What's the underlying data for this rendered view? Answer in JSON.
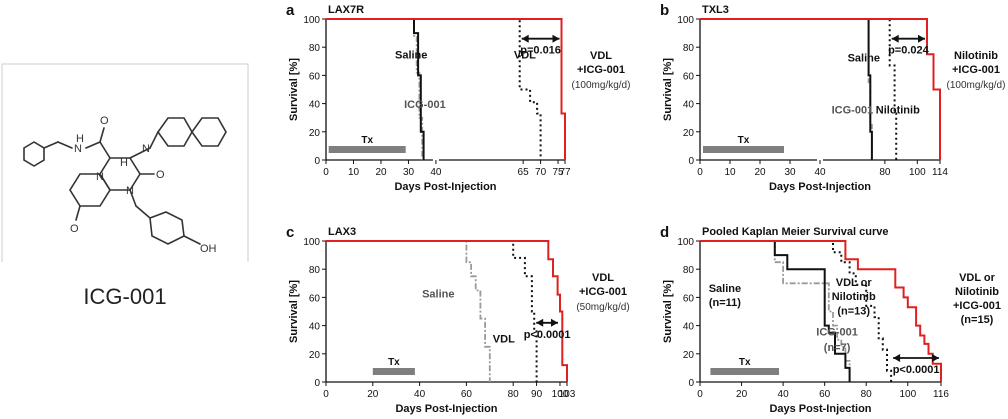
{
  "colors": {
    "combo": "#e02020",
    "saline": "#111111",
    "icg": "#9a9a9a",
    "standard": "#111111",
    "tx_bar": "#7f7f7f",
    "arrow": "#111111"
  },
  "molecule": {
    "label": "ICG-001",
    "atoms": [
      "N",
      "H",
      "O",
      "N",
      "H",
      "N",
      "O",
      "N",
      "O",
      "OH"
    ],
    "icon": "chemical-structure-icon"
  },
  "chart_data": [
    {
      "type": "line",
      "panel_letter": "a",
      "title": "LAX7R",
      "xlabel": "Days Post-Injection",
      "ylabel": "Survival [%]",
      "xlim": [
        0,
        77
      ],
      "ylim": [
        0,
        100
      ],
      "axis_break": true,
      "xticks": [
        "0",
        "10",
        "20",
        "30",
        "40",
        "65",
        "70",
        "75",
        "77"
      ],
      "yticks": [
        "0",
        "20",
        "40",
        "60",
        "80",
        "100"
      ],
      "treatment": {
        "label": "Tx",
        "x": [
          1,
          29
        ]
      },
      "series": [
        {
          "name": "Saline",
          "style": "saline",
          "x": [
            0,
            32,
            32,
            33.5,
            33.5,
            34.5,
            34.5,
            35.5,
            35.5
          ],
          "y": [
            100,
            100,
            90,
            90,
            60,
            60,
            20,
            20,
            0
          ]
        },
        {
          "name": "ICG-001",
          "style": "icg",
          "x": [
            0,
            32,
            32,
            33,
            33,
            34,
            34,
            35,
            35
          ],
          "y": [
            100,
            100,
            88,
            88,
            62,
            62,
            30,
            30,
            0
          ]
        },
        {
          "name": "VDL",
          "style": "standard",
          "x": [
            0,
            64,
            64,
            67,
            67,
            69,
            69,
            70,
            70
          ],
          "y": [
            100,
            100,
            50,
            50,
            41,
            41,
            33,
            33,
            0
          ]
        },
        {
          "name": "",
          "style": "combo",
          "x": [
            0,
            76,
            76,
            77,
            77
          ],
          "y": [
            100,
            100,
            33,
            33,
            0
          ]
        }
      ],
      "series_labels": [
        {
          "text": "Saline",
          "x": 31,
          "y": 72,
          "style": "saline"
        },
        {
          "text": "ICG-001",
          "x": 36,
          "y": 37,
          "style": "icg"
        },
        {
          "text": "VDL",
          "x": 65.5,
          "y": 72,
          "style": "standard"
        }
      ],
      "combo_label": [
        "VDL",
        "+ICG-001"
      ],
      "dose_label": "(100mg/kg/d)",
      "pvalue": {
        "text": "p=0.016",
        "x": [
          64,
          76
        ],
        "y": 86
      }
    },
    {
      "type": "line",
      "panel_letter": "b",
      "title": "TXL3",
      "xlabel": "Days Post-Injection",
      "ylabel": "Survival [%]",
      "xlim": [
        0,
        114
      ],
      "ylim": [
        0,
        100
      ],
      "axis_break": true,
      "xticks": [
        "0",
        "10",
        "20",
        "30",
        "40",
        "80",
        "100",
        "114"
      ],
      "yticks": [
        "0",
        "20",
        "40",
        "60",
        "80",
        "100"
      ],
      "treatment": {
        "label": "Tx",
        "x": [
          1,
          28
        ]
      },
      "series": [
        {
          "name": "Saline",
          "style": "saline",
          "x": [
            0,
            70,
            70,
            71,
            71,
            72,
            72
          ],
          "y": [
            100,
            100,
            60,
            60,
            20,
            20,
            0
          ]
        },
        {
          "name": "ICG-001",
          "style": "icg",
          "x": [
            0,
            70,
            70,
            71,
            71,
            72,
            72
          ],
          "y": [
            100,
            100,
            55,
            55,
            25,
            25,
            0
          ]
        },
        {
          "name": "Nilotinib",
          "style": "standard",
          "x": [
            0,
            83,
            83,
            86,
            86,
            87,
            87
          ],
          "y": [
            100,
            100,
            67,
            67,
            33,
            33,
            0
          ]
        },
        {
          "name": "",
          "style": "combo",
          "x": [
            0,
            106,
            106,
            110,
            110,
            114,
            114
          ],
          "y": [
            100,
            100,
            75,
            75,
            50,
            50,
            0
          ]
        }
      ],
      "series_labels": [
        {
          "text": "Saline",
          "x": 67,
          "y": 70,
          "style": "saline"
        },
        {
          "text": "ICG-001",
          "x": 60,
          "y": 33,
          "style": "icg"
        },
        {
          "text": "Nilotinib",
          "x": 88,
          "y": 33,
          "style": "standard"
        }
      ],
      "combo_label": [
        "Nilotinib",
        "+ICG-001"
      ],
      "dose_label": "(100mg/kg/d)",
      "pvalue": {
        "text": "p=0.024",
        "x": [
          83,
          106
        ],
        "y": 86
      }
    },
    {
      "type": "line",
      "panel_letter": "c",
      "title": "LAX3",
      "xlabel": "Days Post-Injection",
      "ylabel": "Survival [%]",
      "xlim": [
        0,
        103
      ],
      "ylim": [
        0,
        100
      ],
      "axis_break": false,
      "xticks": [
        "0",
        "20",
        "40",
        "60",
        "80",
        "90",
        "100",
        "103"
      ],
      "yticks": [
        "0",
        "20",
        "40",
        "60",
        "80",
        "100"
      ],
      "treatment": {
        "label": "Tx",
        "x": [
          20,
          38
        ]
      },
      "series": [
        {
          "name": "Saline",
          "style": "icg",
          "x": [
            0,
            60,
            60,
            62,
            62,
            64,
            64,
            66,
            66,
            68,
            68,
            70,
            70
          ],
          "y": [
            100,
            100,
            85,
            85,
            75,
            75,
            65,
            65,
            45,
            45,
            25,
            25,
            0
          ]
        },
        {
          "name": "VDL",
          "style": "standard",
          "x": [
            0,
            80,
            80,
            85,
            85,
            88,
            88,
            89,
            89,
            90,
            90
          ],
          "y": [
            100,
            100,
            88,
            88,
            75,
            75,
            50,
            50,
            37,
            37,
            0
          ]
        },
        {
          "name": "",
          "style": "combo",
          "x": [
            0,
            95,
            95,
            97,
            97,
            99,
            99,
            100,
            100,
            101,
            101,
            103,
            103
          ],
          "y": [
            100,
            100,
            87,
            87,
            75,
            75,
            62,
            62,
            50,
            50,
            12,
            12,
            0
          ]
        }
      ],
      "series_labels": [
        {
          "text": "Saline",
          "x": 48,
          "y": 60,
          "style": "icg"
        },
        {
          "text": "VDL",
          "x": 76,
          "y": 28,
          "style": "standard"
        }
      ],
      "combo_label": [
        "VDL",
        "+ICG-001"
      ],
      "dose_label": "(50mg/kg/d)",
      "pvalue": {
        "text": "p<0.0001",
        "x": [
          89,
          100
        ],
        "y": 42
      }
    },
    {
      "type": "line",
      "panel_letter": "d",
      "title": "Pooled Kaplan Meier Survival curve",
      "xlabel": "Days Post-Injection",
      "ylabel": "Survival [%]",
      "xlim": [
        0,
        116
      ],
      "ylim": [
        0,
        100
      ],
      "axis_break": false,
      "xticks": [
        "0",
        "20",
        "40",
        "60",
        "80",
        "100",
        "116"
      ],
      "yticks": [
        "0",
        "20",
        "40",
        "60",
        "80",
        "100"
      ],
      "treatment": {
        "label": "Tx",
        "x": [
          5,
          38
        ]
      },
      "series": [
        {
          "name": "Saline (n=11)",
          "style": "saline",
          "x": [
            0,
            36,
            36,
            42,
            42,
            60,
            60,
            62,
            62,
            65,
            65,
            70,
            70,
            72,
            72
          ],
          "y": [
            100,
            100,
            90,
            90,
            80,
            80,
            40,
            40,
            35,
            35,
            20,
            20,
            10,
            10,
            0
          ]
        },
        {
          "name": "ICG-001 (n=7)",
          "style": "icg",
          "x": [
            0,
            36,
            36,
            40,
            40,
            62,
            62,
            64,
            64,
            66,
            66,
            68,
            68,
            70,
            70,
            72,
            72
          ],
          "y": [
            100,
            100,
            85,
            85,
            70,
            70,
            50,
            50,
            40,
            40,
            30,
            30,
            25,
            25,
            15,
            15,
            0
          ]
        },
        {
          "name": "VDL or Nilotinib (n=13)",
          "style": "standard",
          "x": [
            0,
            64,
            64,
            68,
            68,
            72,
            72,
            75,
            75,
            80,
            80,
            84,
            84,
            86,
            86,
            88,
            88,
            90,
            90,
            92,
            92
          ],
          "y": [
            100,
            100,
            92,
            92,
            85,
            85,
            77,
            77,
            69,
            69,
            54,
            54,
            46,
            46,
            31,
            31,
            23,
            23,
            8,
            8,
            0
          ]
        },
        {
          "name": "VDL or Nilotinib +ICG-001 (n=15)",
          "style": "combo",
          "x": [
            0,
            70,
            70,
            76,
            76,
            94,
            94,
            98,
            98,
            100,
            100,
            104,
            104,
            106,
            106,
            108,
            108,
            110,
            110,
            112,
            112,
            116,
            116
          ],
          "y": [
            100,
            100,
            87,
            87,
            80,
            80,
            67,
            67,
            60,
            60,
            53,
            53,
            40,
            40,
            33,
            33,
            27,
            27,
            20,
            20,
            13,
            13,
            0
          ]
        }
      ],
      "series_labels": [
        {
          "text": "Saline",
          "x": 12,
          "y": 64,
          "style": "saline"
        },
        {
          "text": "(n=11)",
          "x": 12,
          "y": 54,
          "style": "saline"
        },
        {
          "text": "VDL or",
          "x": 74,
          "y": 68,
          "style": "standard"
        },
        {
          "text": "Nilotinib",
          "x": 74,
          "y": 58,
          "style": "standard"
        },
        {
          "text": "(n=13)",
          "x": 74,
          "y": 48,
          "style": "standard"
        },
        {
          "text": "ICG-001",
          "x": 66,
          "y": 33,
          "style": "icg"
        },
        {
          "text": "(n=7)",
          "x": 66,
          "y": 22,
          "style": "icg"
        }
      ],
      "combo_label": [
        "VDL or",
        "Nilotinib",
        "+ICG-001",
        "(n=15)"
      ],
      "dose_label": "",
      "pvalue": {
        "text": "p<0.0001",
        "x": [
          92,
          116
        ],
        "y": 17
      }
    }
  ]
}
